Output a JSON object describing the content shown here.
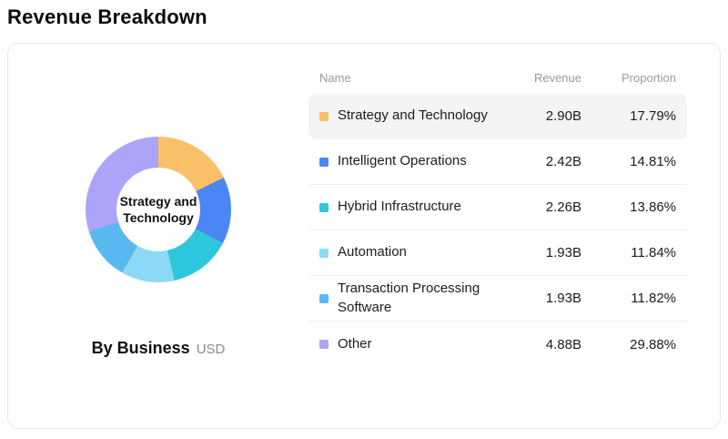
{
  "page": {
    "title": "Revenue Breakdown"
  },
  "chart_data": {
    "type": "pie",
    "subtype": "donut",
    "title": "Revenue Breakdown",
    "group_label": "By Business",
    "unit": "USD",
    "center_label": "Strategy and Technology",
    "legend_position": "right-table",
    "start_angle_deg": 0,
    "categories": [
      "Strategy and Technology",
      "Intelligent Operations",
      "Hybrid Infrastructure",
      "Automation",
      "Transaction Processing Software",
      "Other"
    ],
    "revenues": [
      "2.90B",
      "2.42B",
      "2.26B",
      "1.93B",
      "1.93B",
      "4.88B"
    ],
    "proportions_pct": [
      17.79,
      14.81,
      13.86,
      11.84,
      11.82,
      29.88
    ],
    "colors": [
      "#FAC069",
      "#4A87F5",
      "#2EC7DB",
      "#8BD9F7",
      "#57B9EF",
      "#ACA4F8"
    ]
  },
  "table": {
    "headers": [
      "Name",
      "Revenue",
      "Proportion"
    ],
    "rows": [
      {
        "name": "Strategy and Technology",
        "revenue": "2.90B",
        "proportion": "17.79%",
        "color": "#FAC069",
        "highlighted": true
      },
      {
        "name": "Intelligent Operations",
        "revenue": "2.42B",
        "proportion": "14.81%",
        "color": "#4A87F5",
        "highlighted": false
      },
      {
        "name": "Hybrid Infrastructure",
        "revenue": "2.26B",
        "proportion": "13.86%",
        "color": "#2EC7DB",
        "highlighted": false
      },
      {
        "name": "Automation",
        "revenue": "1.93B",
        "proportion": "11.84%",
        "color": "#8BD9F7",
        "highlighted": false
      },
      {
        "name": "Transaction Processing Software",
        "revenue": "1.93B",
        "proportion": "11.82%",
        "color": "#57B9EF",
        "highlighted": false
      },
      {
        "name": "Other",
        "revenue": "4.88B",
        "proportion": "29.88%",
        "color": "#ACA4F8",
        "highlighted": false
      }
    ]
  }
}
